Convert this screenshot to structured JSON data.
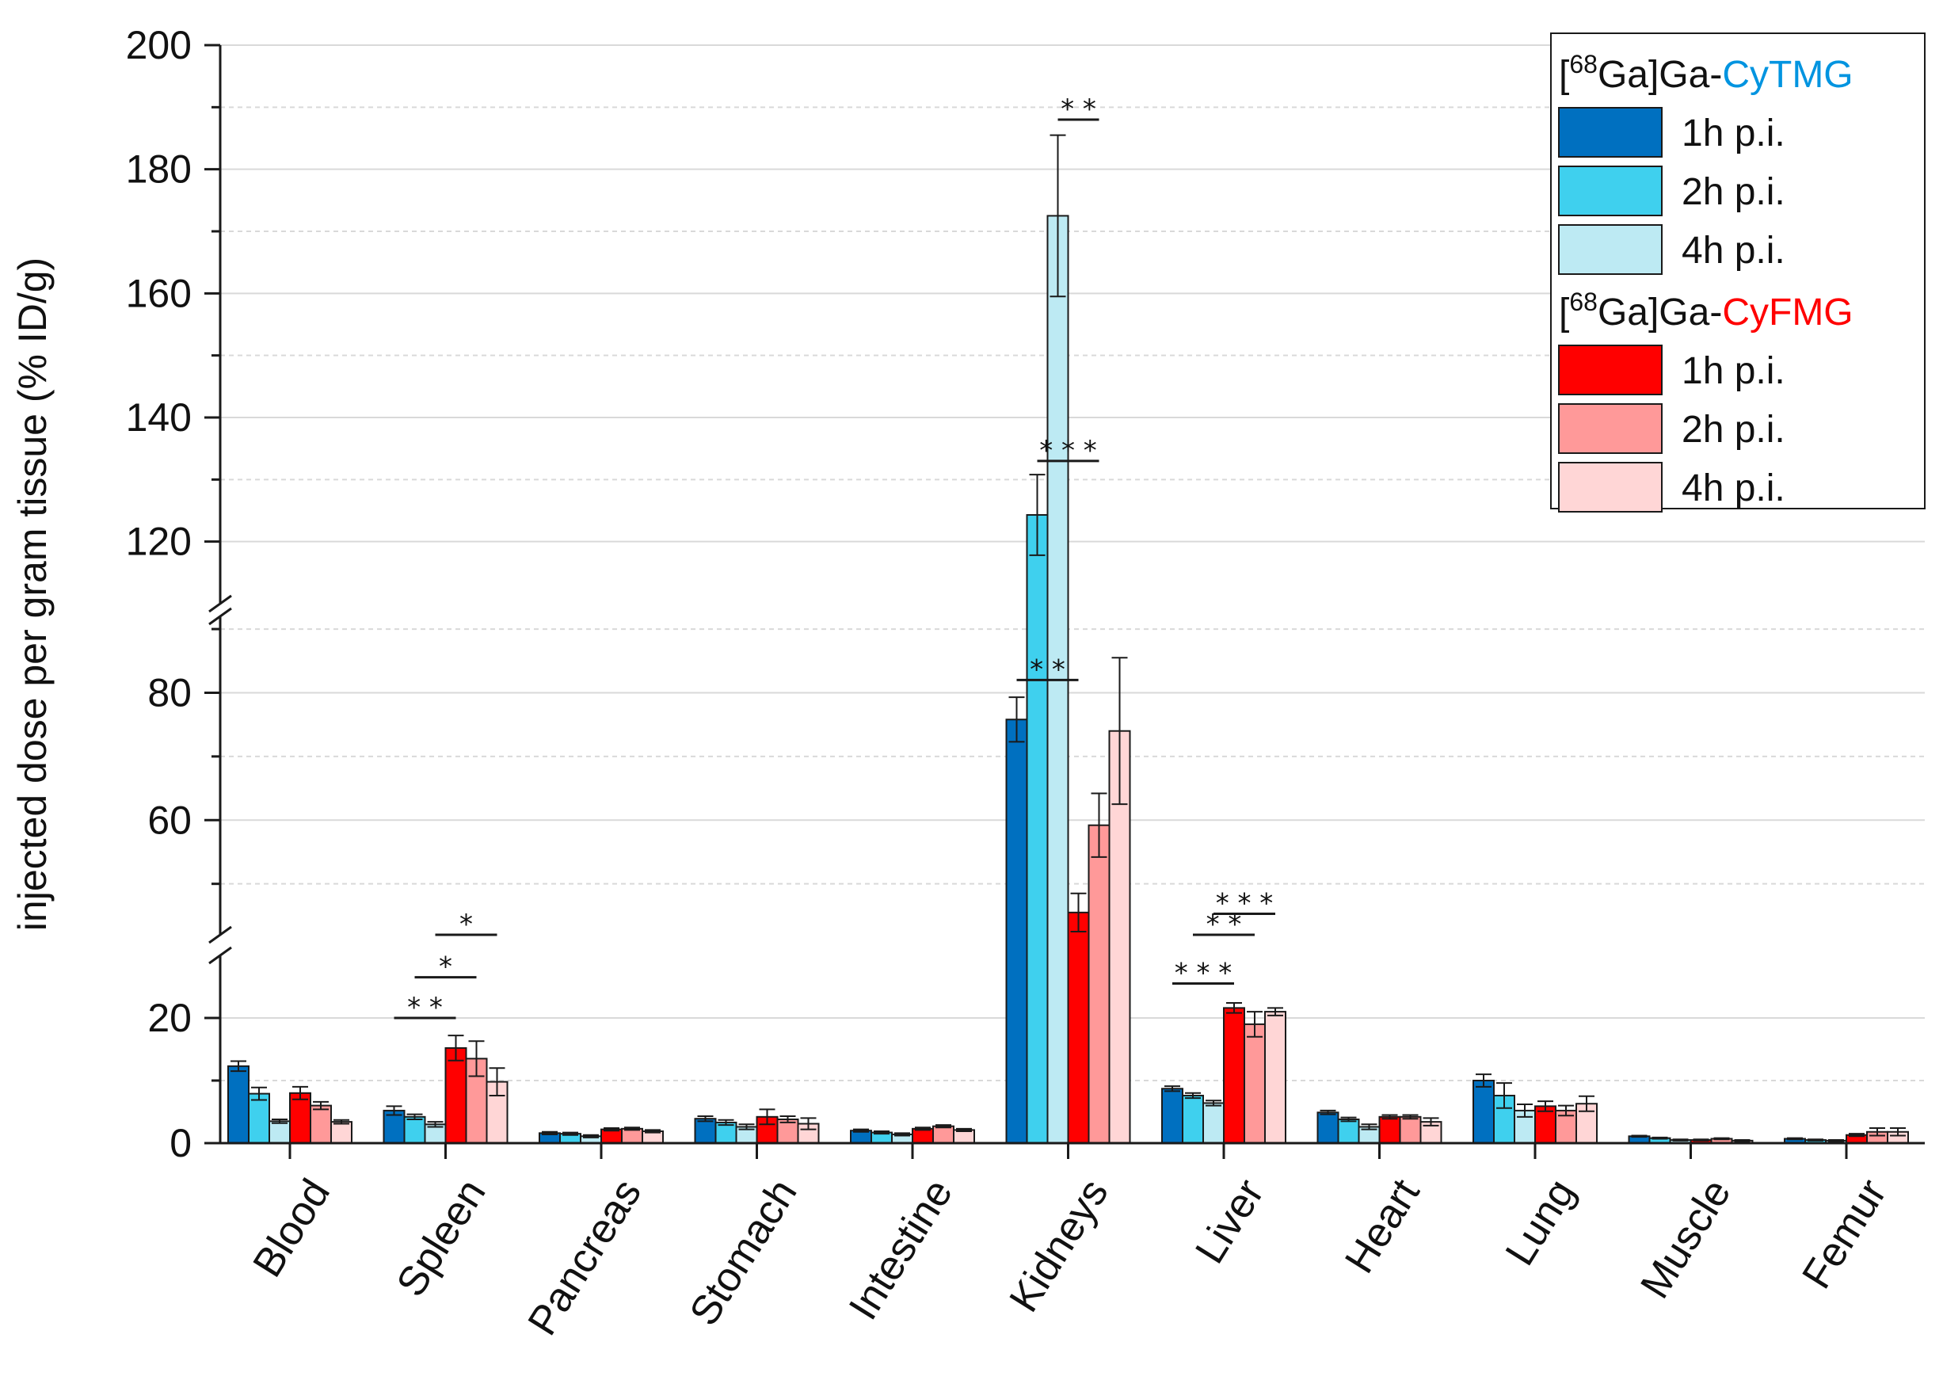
{
  "chart_data": {
    "type": "bar",
    "title": "",
    "xlabel": "",
    "ylabel": "injected dose per gram tissue (% ID/g)",
    "axis_break": {
      "segments": [
        {
          "range": [
            0,
            30
          ],
          "ticks": [
            0,
            20
          ],
          "minor_ticks": [
            10
          ]
        },
        {
          "range": [
            42,
            92
          ],
          "ticks": [
            60,
            80
          ],
          "minor_ticks": [
            50,
            70,
            90
          ]
        },
        {
          "range": [
            110,
            200
          ],
          "ticks": [
            120,
            140,
            160,
            180,
            200
          ],
          "minor_ticks": [
            130,
            150,
            170,
            190
          ]
        }
      ]
    },
    "categories": [
      "Blood",
      "Spleen",
      "Pancreas",
      "Stomach",
      "Intestine",
      "Kidneys",
      "Liver",
      "Heart",
      "Lung",
      "Muscle",
      "Femur"
    ],
    "series": [
      {
        "name": "1h p.i.",
        "group": "[68Ga]Ga-CyTMG",
        "color": "#0070c0",
        "values": [
          12.3,
          5.2,
          1.6,
          3.9,
          2.0,
          75.8,
          8.7,
          4.9,
          10.0,
          1.1,
          0.7
        ],
        "errors": [
          0.8,
          0.7,
          0.2,
          0.4,
          0.2,
          3.5,
          0.4,
          0.3,
          1.0,
          0.1,
          0.1
        ]
      },
      {
        "name": "2h p.i.",
        "group": "[68Ga]Ga-CyTMG",
        "color": "#3fd0ee",
        "values": [
          7.9,
          4.2,
          1.5,
          3.3,
          1.7,
          124.3,
          7.6,
          3.8,
          7.6,
          0.8,
          0.5
        ],
        "errors": [
          1.0,
          0.4,
          0.2,
          0.4,
          0.2,
          6.5,
          0.4,
          0.3,
          2.0,
          0.1,
          0.1
        ]
      },
      {
        "name": "4h p.i.",
        "group": "[68Ga]Ga-CyTMG",
        "color": "#bdeaf3",
        "values": [
          3.5,
          3.0,
          1.1,
          2.6,
          1.4,
          172.5,
          6.4,
          2.6,
          5.2,
          0.5,
          0.4
        ],
        "errors": [
          0.3,
          0.4,
          0.2,
          0.4,
          0.2,
          13.0,
          0.4,
          0.4,
          1.0,
          0.1,
          0.1
        ]
      },
      {
        "name": "1h p.i.",
        "group": "[68Ga]Ga-CyFMG",
        "color": "#ff0000",
        "values": [
          8.0,
          15.2,
          2.2,
          4.2,
          2.3,
          45.5,
          21.6,
          4.2,
          5.9,
          0.5,
          1.3
        ],
        "errors": [
          1.0,
          2.0,
          0.2,
          1.2,
          0.2,
          3.0,
          0.8,
          0.3,
          0.8,
          0.1,
          0.2
        ]
      },
      {
        "name": "2h p.i.",
        "group": "[68Ga]Ga-CyFMG",
        "color": "#ff9999",
        "values": [
          6.0,
          13.5,
          2.3,
          3.8,
          2.7,
          59.2,
          19.0,
          4.2,
          5.2,
          0.7,
          1.8
        ],
        "errors": [
          0.6,
          2.8,
          0.2,
          0.5,
          0.2,
          5.0,
          2.0,
          0.3,
          0.8,
          0.1,
          0.6
        ]
      },
      {
        "name": "4h p.i.",
        "group": "[68Ga]Ga-CyFMG",
        "color": "#ffd6d6",
        "values": [
          3.4,
          9.8,
          1.9,
          3.1,
          2.1,
          74.0,
          21.0,
          3.4,
          6.3,
          0.4,
          1.8
        ],
        "errors": [
          0.3,
          2.2,
          0.2,
          0.9,
          0.2,
          11.5,
          0.6,
          0.6,
          1.2,
          0.1,
          0.6
        ]
      }
    ],
    "legend": {
      "position": "top-right",
      "groups": [
        {
          "prefix": "[",
          "superscript": "68",
          "mid": "Ga]Ga-",
          "name": "CyTMG",
          "name_color": "#0094e0"
        },
        {
          "prefix": "[",
          "superscript": "68",
          "mid": "Ga]Ga-",
          "name": "CyFMG",
          "name_color": "#ff0000"
        }
      ]
    },
    "significance": [
      {
        "category": "Kidneys",
        "from": 2,
        "to": 4,
        "value": 188,
        "label": "* *"
      },
      {
        "category": "Kidneys",
        "from": 1,
        "to": 4,
        "value": 133,
        "label": "* * *"
      },
      {
        "category": "Kidneys",
        "from": 0,
        "to": 3,
        "value": 82,
        "label": "* *"
      },
      {
        "category": "Spleen",
        "from": 0,
        "to": 3,
        "value": 20,
        "label": "* *"
      },
      {
        "category": "Spleen",
        "from": 1,
        "to": 4,
        "value": 26.5,
        "label": "*"
      },
      {
        "category": "Spleen",
        "from": 2,
        "to": 5,
        "value": 32.5,
        "label": "*"
      },
      {
        "category": "Liver",
        "from": 0,
        "to": 3,
        "value": 25.5,
        "label": "* * *"
      },
      {
        "category": "Liver",
        "from": 1,
        "to": 4,
        "value": 32.3,
        "label": "* *"
      },
      {
        "category": "Liver",
        "from": 2,
        "to": 5,
        "value": 45.3,
        "label": "* * *"
      }
    ]
  }
}
